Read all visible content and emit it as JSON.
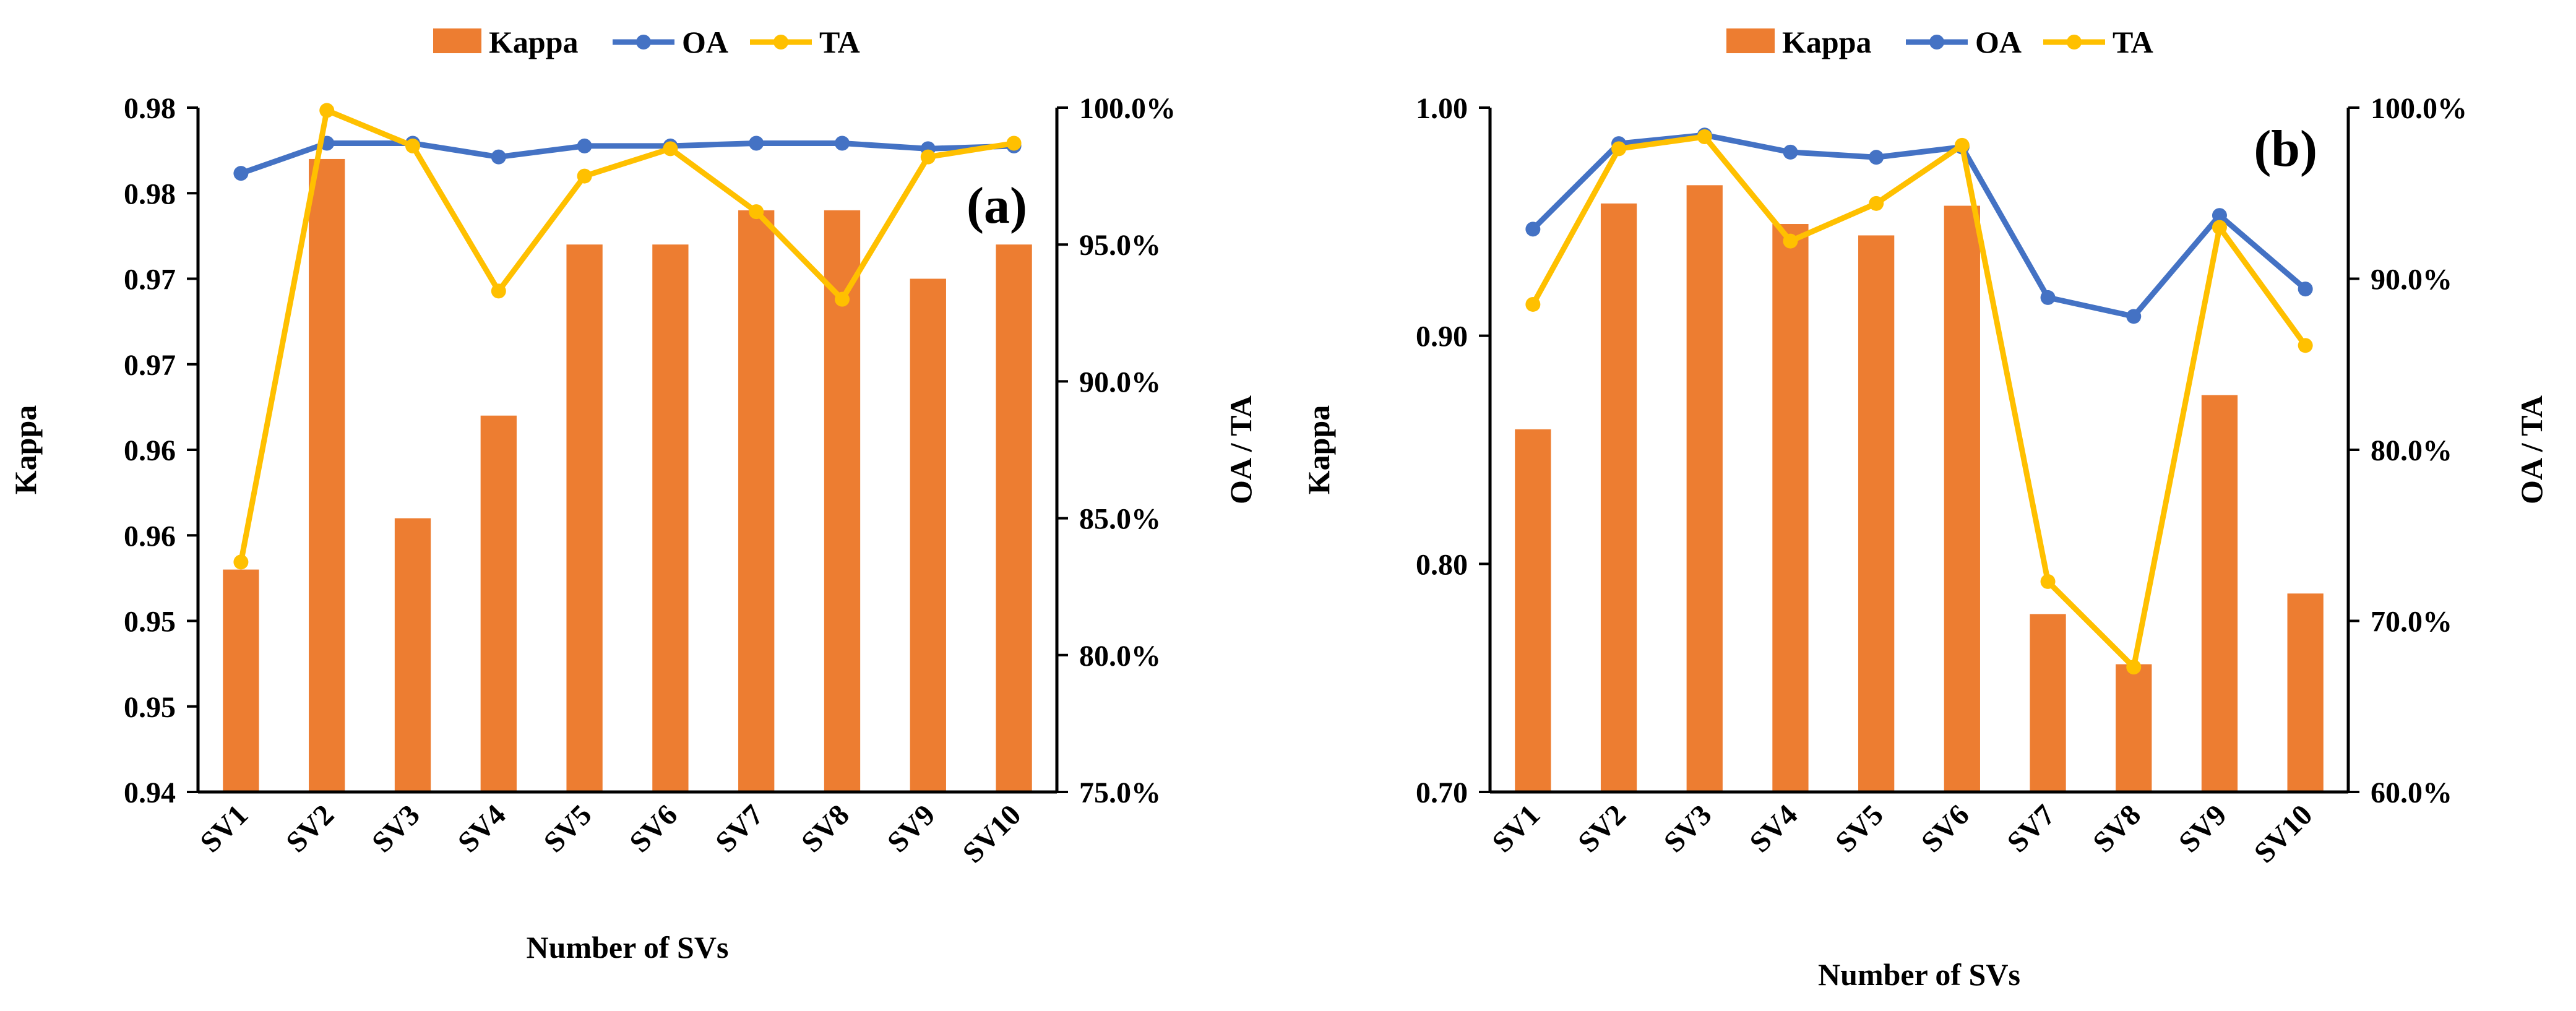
{
  "chart_data": [
    {
      "type": "bar",
      "panel_label": "(a)",
      "categories": [
        "SV1",
        "SV2",
        "SV3",
        "SV4",
        "SV5",
        "SV6",
        "SV7",
        "SV8",
        "SV9",
        "SV10"
      ],
      "xlabel": "Number of SVs",
      "ylabel": "Kappa",
      "y2label": "OA / TA",
      "ylim": [
        0.94,
        0.98
      ],
      "y2lim": [
        0.75,
        1.0
      ],
      "yticks": [
        "0.94",
        "0.95",
        "0.95",
        "0.96",
        "0.96",
        "0.97",
        "0.97",
        "0.98",
        "0.98"
      ],
      "y2ticks": [
        "75.0%",
        "80.0%",
        "85.0%",
        "90.0%",
        "95.0%",
        "100.0%"
      ],
      "legend": [
        "Kappa",
        "OA",
        "TA"
      ],
      "legend_position": "top",
      "grid": false,
      "colors": {
        "Kappa": "#ED7D31",
        "OA": "#4472C4",
        "TA": "#FFC000"
      },
      "series": [
        {
          "name": "Kappa",
          "type": "bar",
          "axis": "left",
          "values": [
            0.953,
            0.977,
            0.956,
            0.962,
            0.972,
            0.972,
            0.974,
            0.974,
            0.97,
            0.972
          ]
        },
        {
          "name": "OA",
          "type": "line",
          "axis": "right",
          "values": [
            0.976,
            0.987,
            0.987,
            0.982,
            0.986,
            0.986,
            0.987,
            0.987,
            0.985,
            0.986
          ]
        },
        {
          "name": "TA",
          "type": "line",
          "axis": "right",
          "values": [
            0.834,
            0.999,
            0.986,
            0.933,
            0.975,
            0.985,
            0.962,
            0.93,
            0.982,
            0.987
          ]
        }
      ]
    },
    {
      "type": "bar",
      "panel_label": "(b)",
      "categories": [
        "SV1",
        "SV2",
        "SV3",
        "SV4",
        "SV5",
        "SV6",
        "SV7",
        "SV8",
        "SV9",
        "SV10"
      ],
      "xlabel": "Number of SVs",
      "ylabel": "Kappa",
      "y2label": "OA / TA",
      "ylim": [
        0.7,
        1.0
      ],
      "y2lim": [
        0.6,
        1.0
      ],
      "yticks": [
        "0.70",
        "0.80",
        "0.90",
        "1.00"
      ],
      "y2ticks": [
        "60.0%",
        "70.0%",
        "80.0%",
        "90.0%",
        "100.0%"
      ],
      "legend": [
        "Kappa",
        "OA",
        "TA"
      ],
      "legend_position": "top",
      "grid": false,
      "colors": {
        "Kappa": "#ED7D31",
        "OA": "#4472C4",
        "TA": "#FFC000"
      },
      "series": [
        {
          "name": "Kappa",
          "type": "bar",
          "axis": "left",
          "values": [
            0.859,
            0.958,
            0.966,
            0.949,
            0.944,
            0.957,
            0.778,
            0.756,
            0.874,
            0.787
          ]
        },
        {
          "name": "OA",
          "type": "line",
          "axis": "right",
          "values": [
            0.929,
            0.979,
            0.984,
            0.974,
            0.971,
            0.977,
            0.889,
            0.878,
            0.937,
            0.894
          ]
        },
        {
          "name": "TA",
          "type": "line",
          "axis": "right",
          "values": [
            0.885,
            0.976,
            0.983,
            0.922,
            0.944,
            0.978,
            0.723,
            0.673,
            0.93,
            0.861
          ]
        }
      ]
    }
  ]
}
